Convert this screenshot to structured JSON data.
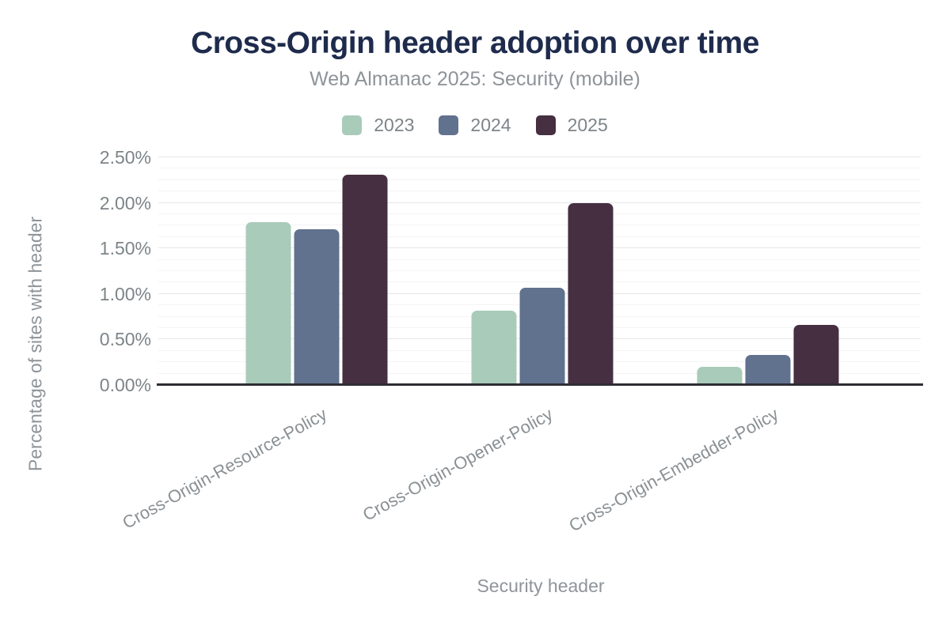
{
  "chart_data": {
    "type": "bar",
    "title": "Cross-Origin header adoption over time",
    "subtitle": "Web Almanac 2025: Security (mobile)",
    "xlabel": "Security header",
    "ylabel": "Percentage of sites with header",
    "categories": [
      "Cross-Origin-Resource-Policy",
      "Cross-Origin-Opener-Policy",
      "Cross-Origin-Embedder-Policy"
    ],
    "series": [
      {
        "name": "2023",
        "color": "#a9cbba",
        "values": [
          1.79,
          0.82,
          0.2
        ]
      },
      {
        "name": "2024",
        "color": "#61728f",
        "values": [
          1.71,
          1.07,
          0.33
        ]
      },
      {
        "name": "2025",
        "color": "#462f41",
        "values": [
          2.31,
          2.0,
          0.66
        ]
      }
    ],
    "ylim": [
      0,
      2.5
    ],
    "yticks": [
      {
        "value": 0.0,
        "label": "0.00%"
      },
      {
        "value": 0.5,
        "label": "0.50%"
      },
      {
        "value": 1.0,
        "label": "1.00%"
      },
      {
        "value": 1.5,
        "label": "1.50%"
      },
      {
        "value": 2.0,
        "label": "2.00%"
      },
      {
        "value": 2.5,
        "label": "2.50%"
      }
    ],
    "minor_tick_step": 0.125,
    "grid": true,
    "legend_position": "top"
  },
  "colors": {
    "title": "#1e2b4c",
    "subtitle": "#8e9499",
    "tick_label": "#7d8488",
    "category_label": "#8a9094",
    "axis_line": "#2e2e34",
    "gridline_major": "#e7e7e7",
    "gridline_minor": "#f4f4f4",
    "background": "#ffffff",
    "series_2023": "#a9cbba",
    "series_2024": "#61728f",
    "series_2025": "#462f41"
  }
}
